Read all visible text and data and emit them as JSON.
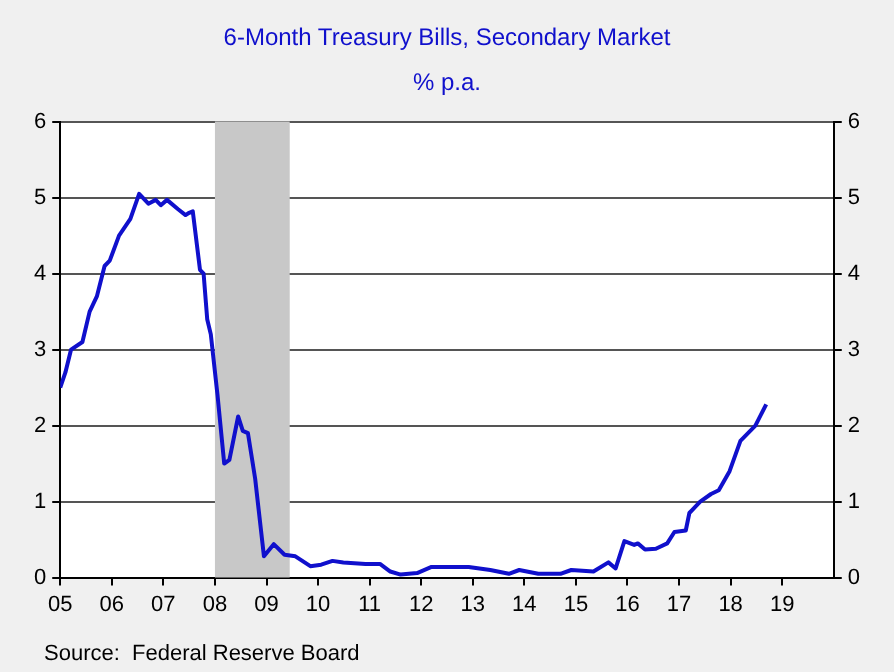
{
  "chart_data": {
    "type": "line",
    "title": "6-Month Treasury Bills, Secondary Market",
    "subtitle": "% p.a.",
    "series": [
      {
        "color": "#1010cc",
        "x": [
          2005.0,
          2005.1,
          2005.21,
          2005.43,
          2005.57,
          2005.71,
          2005.86,
          2005.96,
          2006.14,
          2006.36,
          2006.53,
          2006.71,
          2006.85,
          2006.95,
          2007.07,
          2007.28,
          2007.43,
          2007.5,
          2007.57,
          2007.71,
          2007.78,
          2007.85,
          2007.92,
          2008.05,
          2008.18,
          2008.28,
          2008.45,
          2008.54,
          2008.64,
          2008.78,
          2008.95,
          2009.14,
          2009.35,
          2009.56,
          2009.85,
          2010.06,
          2010.28,
          2010.49,
          2010.92,
          2011.2,
          2011.4,
          2011.6,
          2011.92,
          2012.2,
          2012.92,
          2013.34,
          2013.7,
          2013.9,
          2014.27,
          2014.7,
          2014.91,
          2015.34,
          2015.63,
          2015.77,
          2015.94,
          2016.13,
          2016.2,
          2016.34,
          2016.55,
          2016.77,
          2016.91,
          2017.13,
          2017.2,
          2017.41,
          2017.62,
          2017.77,
          2017.98,
          2018.19,
          2018.48,
          2018.69
        ],
        "values": [
          2.5,
          2.7,
          3.0,
          3.1,
          3.5,
          3.7,
          4.1,
          4.17,
          4.5,
          4.72,
          5.05,
          4.92,
          4.97,
          4.9,
          4.97,
          4.85,
          4.77,
          4.8,
          4.82,
          4.05,
          4.0,
          3.4,
          3.2,
          2.4,
          1.5,
          1.55,
          2.12,
          1.93,
          1.9,
          1.3,
          0.28,
          0.44,
          0.3,
          0.28,
          0.15,
          0.17,
          0.22,
          0.2,
          0.18,
          0.18,
          0.08,
          0.04,
          0.06,
          0.14,
          0.14,
          0.1,
          0.05,
          0.1,
          0.05,
          0.05,
          0.1,
          0.08,
          0.2,
          0.12,
          0.48,
          0.43,
          0.45,
          0.37,
          0.38,
          0.45,
          0.6,
          0.62,
          0.85,
          1.0,
          1.1,
          1.15,
          1.4,
          1.8,
          2.0,
          2.28
        ]
      }
    ],
    "xlim": [
      2005,
      2020
    ],
    "xticks": [
      {
        "value": 2005,
        "label": "05"
      },
      {
        "value": 2006,
        "label": "06"
      },
      {
        "value": 2007,
        "label": "07"
      },
      {
        "value": 2008,
        "label": "08"
      },
      {
        "value": 2009,
        "label": "09"
      },
      {
        "value": 2010,
        "label": "10"
      },
      {
        "value": 2011,
        "label": "11"
      },
      {
        "value": 2012,
        "label": "12"
      },
      {
        "value": 2013,
        "label": "13"
      },
      {
        "value": 2014,
        "label": "14"
      },
      {
        "value": 2015,
        "label": "15"
      },
      {
        "value": 2016,
        "label": "16"
      },
      {
        "value": 2017,
        "label": "17"
      },
      {
        "value": 2018,
        "label": "18"
      },
      {
        "value": 2019,
        "label": "19"
      }
    ],
    "ylim": [
      0,
      6
    ],
    "yticks": [
      0,
      1,
      2,
      3,
      4,
      5,
      6
    ],
    "y2lim": [
      0,
      6
    ],
    "y2ticks": [
      0,
      1,
      2,
      3,
      4,
      5,
      6
    ],
    "bands": [
      {
        "axis": "x",
        "from": 2008.0,
        "to": 2009.45,
        "color": "#c8c8c8"
      }
    ],
    "grid": "y",
    "legend": false,
    "marker": "none",
    "line_style": "solid",
    "annotations": [
      "Source:  Federal Reserve Board"
    ]
  }
}
